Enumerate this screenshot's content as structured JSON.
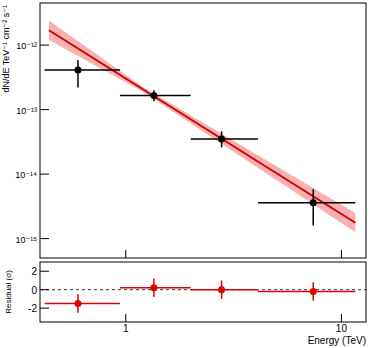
{
  "chart_data": [
    {
      "type": "scatter",
      "y_label": "dN/dE TeV⁻¹ cm⁻² s⁻¹",
      "log": true,
      "tick_labels": "y",
      "xlim": [
        0.4,
        13
      ],
      "ylim": [
        5e-16,
        4.5e-12
      ],
      "xticks": [
        1,
        10
      ],
      "yticks": [
        {
          "value": 1e-15,
          "label": "10⁻¹⁵"
        },
        {
          "value": 1e-14,
          "label": "10⁻¹⁴"
        },
        {
          "value": 1e-13,
          "label": "10⁻¹³"
        },
        {
          "value": 1e-12,
          "label": "10⁻¹²"
        }
      ],
      "series": [
        {
          "type": "area",
          "color": "#f4a3a3",
          "x": [
            0.44,
            1.2,
            11.6
          ],
          "lower": [
            1.2e-12,
            1.9e-13,
            1.25e-15
          ],
          "upper": [
            2.4e-12,
            2.25e-13,
            2.5e-15
          ]
        },
        {
          "type": "line",
          "color": "#d40000",
          "line_style": "solid",
          "x": [
            0.44,
            11.6
          ],
          "values": [
            1.7e-12,
            1.76e-15
          ]
        },
        {
          "type": "scatter",
          "color": "#000000",
          "marker": "circle",
          "x": [
            0.6,
            1.35,
            2.78,
            7.4
          ],
          "values": [
            4.1e-13,
            1.65e-13,
            3.5e-14,
            3.6e-15
          ],
          "y_lower": [
            2.2e-13,
            1.35e-13,
            2.6e-14,
            1.6e-15
          ],
          "y_upper": [
            5.9e-13,
            2e-13,
            4.6e-14,
            5.8e-15
          ],
          "x_lower": [
            0.42,
            0.94,
            2.0,
            4.1
          ],
          "x_upper": [
            0.94,
            2.0,
            4.1,
            11.6
          ]
        }
      ]
    },
    {
      "type": "scatter",
      "x_label": "Energy (TeV)",
      "y_label": "Residual (σ)",
      "log": "x",
      "xlim": [
        0.4,
        13
      ],
      "ylim": [
        -3.5,
        3
      ],
      "xticks": [
        1,
        10
      ],
      "yticks": [
        -2,
        0,
        2
      ],
      "baseline": 0,
      "series": [
        {
          "type": "scatter",
          "color": "#e00000",
          "marker": "circle",
          "x": [
            0.6,
            1.35,
            2.78,
            7.4
          ],
          "values": [
            -1.5,
            0.2,
            0.0,
            -0.2
          ],
          "y_lower": [
            -2.5,
            -0.8,
            -1.0,
            -1.2
          ],
          "y_upper": [
            -0.5,
            1.2,
            1.0,
            0.8
          ],
          "x_lower": [
            0.42,
            0.94,
            2.0,
            4.1
          ],
          "x_upper": [
            0.94,
            2.0,
            4.1,
            11.6
          ]
        }
      ]
    }
  ]
}
